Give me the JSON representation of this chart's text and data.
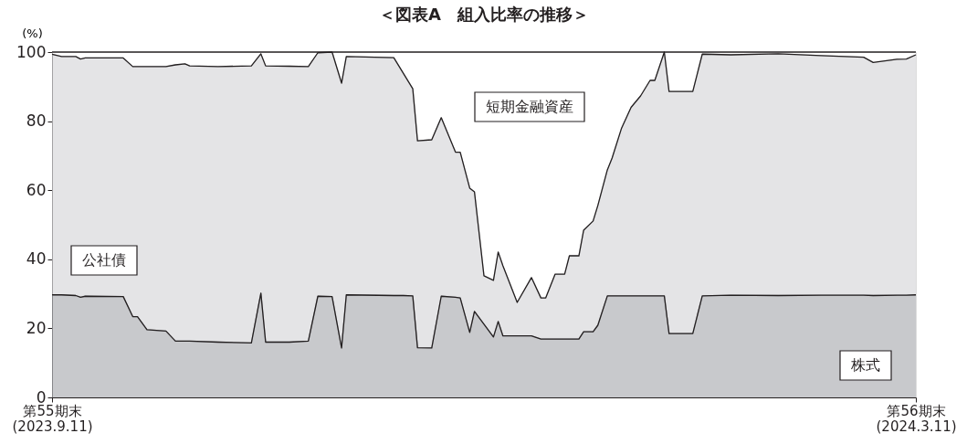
{
  "chart_data": {
    "type": "area",
    "title": "＜図表A　組入比率の推移＞",
    "ylabel": "(%)",
    "stacked": true,
    "legend": false,
    "grid": false,
    "x": [
      "2023-09-11",
      "2023-09-13",
      "2023-09-16",
      "2023-09-17",
      "2023-09-18",
      "2023-09-26",
      "2023-09-28",
      "2023-09-29",
      "2023-10-01",
      "2023-10-05",
      "2023-10-07",
      "2023-10-09",
      "2023-10-10",
      "2023-10-16",
      "2023-10-23",
      "2023-10-25",
      "2023-10-26",
      "2023-10-31",
      "2023-11-04",
      "2023-11-06",
      "2023-11-09",
      "2023-11-11",
      "2023-11-12",
      "2023-11-22",
      "2023-11-24",
      "2023-11-26",
      "2023-11-27",
      "2023-11-30",
      "2023-12-02",
      "2023-12-05",
      "2023-12-06",
      "2023-12-08",
      "2023-12-09",
      "2023-12-11",
      "2023-12-13",
      "2023-12-14",
      "2023-12-15",
      "2023-12-18",
      "2023-12-21",
      "2023-12-23",
      "2023-12-24",
      "2023-12-26",
      "2023-12-28",
      "2023-12-29",
      "2023-12-31",
      "2024-01-01",
      "2024-01-03",
      "2024-01-04",
      "2024-01-06",
      "2024-01-07",
      "2024-01-09",
      "2024-01-11",
      "2024-01-13",
      "2024-01-15",
      "2024-01-16",
      "2024-01-18",
      "2024-01-19",
      "2024-01-24",
      "2024-01-26",
      "2024-02-01",
      "2024-02-11",
      "2024-02-20",
      "2024-02-29",
      "2024-03-02",
      "2024-03-07",
      "2024-03-09",
      "2024-03-11"
    ],
    "series": [
      {
        "name": "株式",
        "color": "#b1b2b6",
        "values": [
          29.7,
          29.7,
          29.5,
          29.0,
          29.3,
          29.2,
          23.4,
          23.4,
          19.6,
          19.2,
          16.3,
          16.3,
          16.3,
          16.0,
          15.8,
          30.2,
          16.0,
          16.0,
          16.3,
          29.3,
          29.2,
          14.3,
          29.7,
          29.5,
          29.5,
          29.4,
          14.4,
          14.3,
          29.3,
          29.0,
          28.8,
          18.8,
          24.9,
          21.2,
          17.5,
          22.0,
          17.8,
          17.8,
          17.8,
          16.9,
          16.9,
          16.9,
          16.9,
          16.9,
          16.9,
          19.0,
          19.0,
          20.9,
          29.4,
          29.4,
          29.4,
          29.4,
          29.4,
          29.4,
          29.4,
          29.4,
          18.5,
          18.5,
          29.4,
          29.6,
          29.5,
          29.6,
          29.6,
          29.5,
          29.6,
          29.6,
          29.7
        ]
      },
      {
        "name": "公社債",
        "color": "#d8d9db",
        "values": [
          69.7,
          69.0,
          69.2,
          69.0,
          69.0,
          69.1,
          72.4,
          72.4,
          76.2,
          76.6,
          80.0,
          80.3,
          79.7,
          79.8,
          80.2,
          69.3,
          80.0,
          79.9,
          79.5,
          70.5,
          70.8,
          76.7,
          69.0,
          68.9,
          64.4,
          60.0,
          59.9,
          60.3,
          51.7,
          42.0,
          42.2,
          41.8,
          34.6,
          14.0,
          16.4,
          20.1,
          20.3,
          9.7,
          16.9,
          11.9,
          11.9,
          18.8,
          18.8,
          24.1,
          24.1,
          29.4,
          32.1,
          34.7,
          36.5,
          39.9,
          48.6,
          54.6,
          57.9,
          62.4,
          62.4,
          70.6,
          70.1,
          70.1,
          70.0,
          69.6,
          70.0,
          69.4,
          68.9,
          67.5,
          68.3,
          68.4,
          69.5
        ]
      },
      {
        "name": "短期金融資産",
        "color": "#ffffff",
        "values": [
          0.6,
          1.3,
          1.3,
          2.0,
          1.7,
          1.7,
          4.2,
          4.2,
          4.2,
          4.2,
          3.7,
          3.4,
          4.0,
          4.2,
          4.0,
          0.5,
          4.0,
          4.1,
          4.2,
          0.2,
          0,
          9.0,
          1.3,
          1.6,
          6.1,
          10.6,
          25.7,
          25.4,
          19.0,
          29.0,
          29.0,
          39.4,
          40.5,
          64.8,
          66.1,
          57.9,
          61.9,
          72.5,
          65.3,
          71.2,
          71.2,
          64.3,
          64.3,
          59.0,
          59.0,
          51.6,
          48.9,
          44.4,
          34.1,
          30.7,
          22.0,
          16.0,
          12.7,
          8.2,
          8.2,
          0,
          11.4,
          11.4,
          0.6,
          0.8,
          0.5,
          1.0,
          1.5,
          3.0,
          2.1,
          2.0,
          0.8
        ]
      }
    ],
    "xlim": [
      "2023-09-11",
      "2024-03-11"
    ],
    "xticks": [
      {
        "value": "2023-09-11",
        "label": "第55期末\n(2023.9.11)"
      },
      {
        "value": "2024-03-11",
        "label": "第56期末\n(2024.3.11)"
      }
    ],
    "ylim": [
      0,
      100
    ],
    "yticks": [
      0,
      20,
      40,
      60,
      80,
      100
    ]
  }
}
